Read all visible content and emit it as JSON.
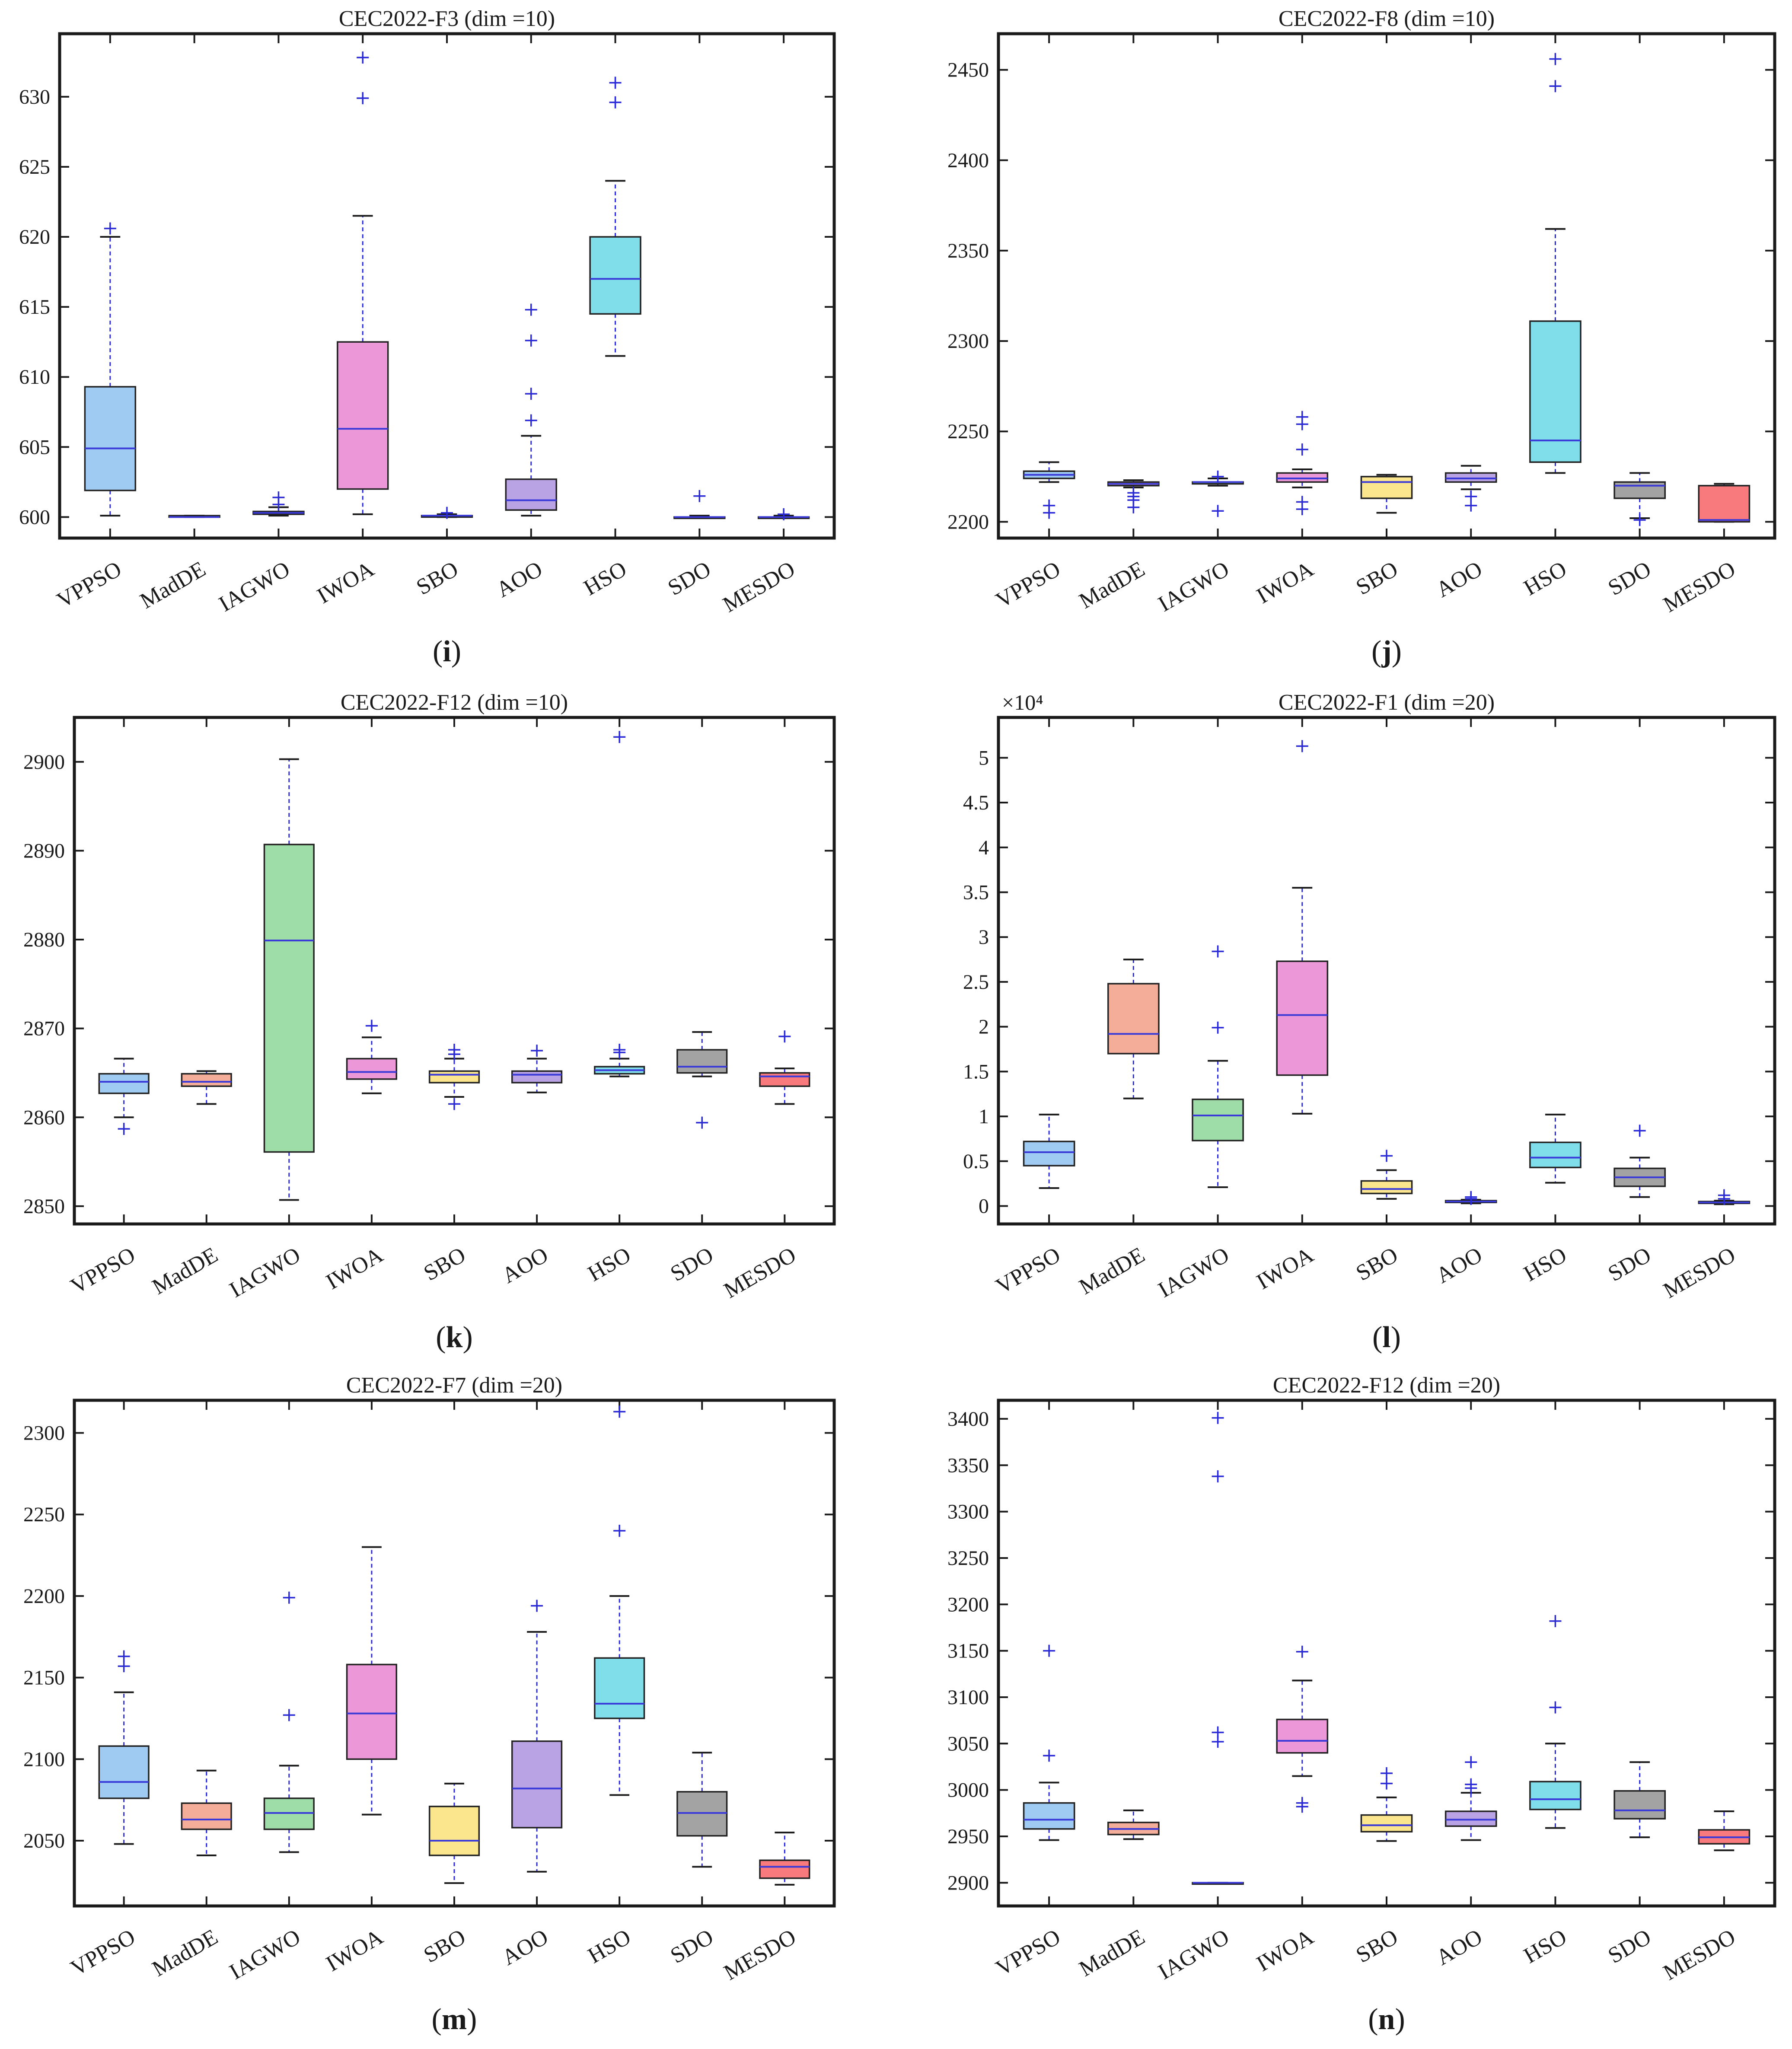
{
  "figure_palette": {
    "VPPSO": "#9fcbf2",
    "MadDE": "#f4ad98",
    "IAGWO": "#9fdda8",
    "IWOA": "#ec98d8",
    "SBO": "#fbe68e",
    "AOO": "#b9a3e4",
    "HSO": "#7fdeea",
    "SDO": "#a3a3a3",
    "MESDO": "#f97a7c",
    "whisker_color": "#2a2ad6",
    "median_color": "#3a3ad8"
  },
  "chart_data": [
    {
      "type": "box",
      "title": "CEC2022-F3 (dim =10)",
      "panel_label": "(i)",
      "label_letter": "i",
      "categories": [
        "VPPSO",
        "MadDE",
        "IAGWO",
        "IWOA",
        "SBO",
        "AOO",
        "HSO",
        "SDO",
        "MESDO"
      ],
      "ylim": [
        598.5,
        634.5
      ],
      "yticks": [
        600,
        605,
        610,
        615,
        620,
        625,
        630
      ],
      "ytick_labels": [
        "600",
        "605",
        "610",
        "615",
        "620",
        "625",
        "630"
      ],
      "boxes": [
        {
          "min": 600.1,
          "q1": 601.9,
          "median": 604.9,
          "q3": 609.3,
          "max": 620.0,
          "outliers": [
            620.6
          ]
        },
        {
          "min": 600.0,
          "q1": 600.0,
          "median": 600.0,
          "q3": 600.1,
          "max": 600.1,
          "outliers": []
        },
        {
          "min": 600.1,
          "q1": 600.2,
          "median": 600.3,
          "q3": 600.4,
          "max": 600.7,
          "outliers": [
            600.9,
            601.4
          ]
        },
        {
          "min": 600.2,
          "q1": 602.0,
          "median": 606.3,
          "q3": 612.5,
          "max": 621.5,
          "outliers": [
            629.9,
            632.8
          ]
        },
        {
          "min": 600.0,
          "q1": 600.0,
          "median": 600.1,
          "q3": 600.1,
          "max": 600.2,
          "outliers": [
            600.3
          ]
        },
        {
          "min": 600.1,
          "q1": 600.5,
          "median": 601.2,
          "q3": 602.7,
          "max": 605.8,
          "outliers": [
            606.9,
            608.8,
            612.6,
            614.8
          ]
        },
        {
          "min": 611.5,
          "q1": 614.5,
          "median": 617.0,
          "q3": 620.0,
          "max": 624.0,
          "outliers": [
            629.6,
            631.0
          ]
        },
        {
          "min": 600.0,
          "q1": 600.0,
          "median": 600.0,
          "q3": 600.0,
          "max": 600.1,
          "outliers": [
            601.5
          ]
        },
        {
          "min": 600.0,
          "q1": 600.0,
          "median": 600.0,
          "q3": 600.0,
          "max": 600.1,
          "outliers": [
            600.2
          ]
        }
      ]
    },
    {
      "type": "box",
      "title": "CEC2022-F8 (dim =10)",
      "panel_label": "(j)",
      "label_letter": "j",
      "categories": [
        "VPPSO",
        "MadDE",
        "IAGWO",
        "IWOA",
        "SBO",
        "AOO",
        "HSO",
        "SDO",
        "MESDO"
      ],
      "ylim": [
        2191,
        2470
      ],
      "yticks": [
        2200,
        2250,
        2300,
        2350,
        2400,
        2450
      ],
      "ytick_labels": [
        "2200",
        "2250",
        "2300",
        "2350",
        "2400",
        "2450"
      ],
      "boxes": [
        {
          "min": 2222,
          "q1": 2224,
          "median": 2226,
          "q3": 2228,
          "max": 2233,
          "outliers": [
            2209,
            2205
          ]
        },
        {
          "min": 2219,
          "q1": 2220,
          "median": 2221,
          "q3": 2222,
          "max": 2223,
          "outliers": [
            2216,
            2214,
            2212,
            2208
          ]
        },
        {
          "min": 2220,
          "q1": 2221,
          "median": 2222,
          "q3": 2222,
          "max": 2224,
          "outliers": [
            2225,
            2206
          ]
        },
        {
          "min": 2219,
          "q1": 2222,
          "median": 2224,
          "q3": 2227,
          "max": 2229,
          "outliers": [
            2240,
            2254,
            2258,
            2211,
            2207
          ]
        },
        {
          "min": 2205,
          "q1": 2213,
          "median": 2222,
          "q3": 2225,
          "max": 2226,
          "outliers": []
        },
        {
          "min": 2218,
          "q1": 2222,
          "median": 2224,
          "q3": 2227,
          "max": 2231,
          "outliers": [
            2214,
            2209
          ]
        },
        {
          "min": 2227,
          "q1": 2233,
          "median": 2245,
          "q3": 2311,
          "max": 2362,
          "outliers": [
            2441,
            2456
          ]
        },
        {
          "min": 2202,
          "q1": 2213,
          "median": 2220,
          "q3": 2222,
          "max": 2227,
          "outliers": [
            2201
          ]
        },
        {
          "min": 2200,
          "q1": 2200,
          "median": 2201,
          "q3": 2220,
          "max": 2221,
          "outliers": []
        }
      ]
    },
    {
      "type": "box",
      "title": "CEC2022-F12 (dim =10)",
      "panel_label": "(k)",
      "label_letter": "k",
      "categories": [
        "VPPSO",
        "MadDE",
        "IAGWO",
        "IWOA",
        "SBO",
        "AOO",
        "HSO",
        "SDO",
        "MESDO"
      ],
      "ylim": [
        2848,
        2905
      ],
      "yticks": [
        2850,
        2860,
        2870,
        2880,
        2890,
        2900
      ],
      "ytick_labels": [
        "2850",
        "2860",
        "2870",
        "2880",
        "2890",
        "2900"
      ],
      "boxes": [
        {
          "min": 2860.0,
          "q1": 2862.7,
          "median": 2864.0,
          "q3": 2864.9,
          "max": 2866.6,
          "outliers": [
            2858.7
          ]
        },
        {
          "min": 2861.5,
          "q1": 2863.5,
          "median": 2864.0,
          "q3": 2864.9,
          "max": 2865.2,
          "outliers": []
        },
        {
          "min": 2850.7,
          "q1": 2856.1,
          "median": 2879.9,
          "q3": 2890.7,
          "max": 2900.3,
          "outliers": []
        },
        {
          "min": 2862.7,
          "q1": 2864.3,
          "median": 2865.1,
          "q3": 2866.6,
          "max": 2869.0,
          "outliers": [
            2870.3
          ]
        },
        {
          "min": 2862.3,
          "q1": 2863.9,
          "median": 2864.8,
          "q3": 2865.2,
          "max": 2866.6,
          "outliers": [
            2867.1,
            2867.6,
            2861.5
          ]
        },
        {
          "min": 2862.8,
          "q1": 2863.9,
          "median": 2864.8,
          "q3": 2865.2,
          "max": 2866.6,
          "outliers": [
            2867.5
          ]
        },
        {
          "min": 2864.6,
          "q1": 2864.9,
          "median": 2865.3,
          "q3": 2865.7,
          "max": 2866.6,
          "outliers": [
            2867.3,
            2867.6,
            2902.8
          ]
        },
        {
          "min": 2864.6,
          "q1": 2865.0,
          "median": 2865.7,
          "q3": 2867.6,
          "max": 2869.6,
          "outliers": [
            2859.4
          ]
        },
        {
          "min": 2861.5,
          "q1": 2863.5,
          "median": 2864.6,
          "q3": 2865.0,
          "max": 2865.5,
          "outliers": [
            2869.1
          ]
        }
      ]
    },
    {
      "type": "box",
      "title": "CEC2022-F1 (dim =20)",
      "panel_label": "(l)",
      "label_letter": "l",
      "exponent_label": "×10⁴",
      "categories": [
        "VPPSO",
        "MadDE",
        "IAGWO",
        "IWOA",
        "SBO",
        "AOO",
        "HSO",
        "SDO",
        "MESDO"
      ],
      "ylim": [
        -0.2,
        5.45
      ],
      "yticks": [
        0,
        0.5,
        1,
        1.5,
        2,
        2.5,
        3,
        3.5,
        4,
        4.5,
        5
      ],
      "ytick_labels": [
        "0",
        "0.5",
        "1",
        "1.5",
        "2",
        "2.5",
        "3",
        "3.5",
        "4",
        "4.5",
        "5"
      ],
      "boxes": [
        {
          "min": 0.2,
          "q1": 0.45,
          "median": 0.6,
          "q3": 0.72,
          "max": 1.02,
          "outliers": []
        },
        {
          "min": 1.2,
          "q1": 1.7,
          "median": 1.92,
          "q3": 2.48,
          "max": 2.75,
          "outliers": []
        },
        {
          "min": 0.21,
          "q1": 0.73,
          "median": 1.01,
          "q3": 1.19,
          "max": 1.62,
          "outliers": [
            1.99,
            2.84
          ]
        },
        {
          "min": 1.03,
          "q1": 1.46,
          "median": 2.13,
          "q3": 2.73,
          "max": 3.55,
          "outliers": [
            5.13
          ]
        },
        {
          "min": 0.08,
          "q1": 0.14,
          "median": 0.19,
          "q3": 0.28,
          "max": 0.4,
          "outliers": [
            0.56
          ]
        },
        {
          "min": 0.03,
          "q1": 0.04,
          "median": 0.05,
          "q3": 0.06,
          "max": 0.07,
          "outliers": [
            0.08,
            0.1
          ]
        },
        {
          "min": 0.26,
          "q1": 0.43,
          "median": 0.54,
          "q3": 0.71,
          "max": 1.02,
          "outliers": []
        },
        {
          "min": 0.1,
          "q1": 0.22,
          "median": 0.32,
          "q3": 0.42,
          "max": 0.54,
          "outliers": [
            0.84
          ]
        },
        {
          "min": 0.02,
          "q1": 0.03,
          "median": 0.04,
          "q3": 0.05,
          "max": 0.06,
          "outliers": [
            0.08,
            0.12
          ]
        }
      ]
    },
    {
      "type": "box",
      "title": "CEC2022-F7 (dim =20)",
      "panel_label": "(m)",
      "label_letter": "m",
      "categories": [
        "VPPSO",
        "MadDE",
        "IAGWO",
        "IWOA",
        "SBO",
        "AOO",
        "HSO",
        "SDO",
        "MESDO"
      ],
      "ylim": [
        2010,
        2320
      ],
      "yticks": [
        2050,
        2100,
        2150,
        2200,
        2250,
        2300
      ],
      "ytick_labels": [
        "2050",
        "2100",
        "2150",
        "2200",
        "2250",
        "2300"
      ],
      "boxes": [
        {
          "min": 2048,
          "q1": 2076,
          "median": 2086,
          "q3": 2108,
          "max": 2141,
          "outliers": [
            2157,
            2163
          ]
        },
        {
          "min": 2041,
          "q1": 2057,
          "median": 2063,
          "q3": 2073,
          "max": 2093,
          "outliers": []
        },
        {
          "min": 2043,
          "q1": 2057,
          "median": 2067,
          "q3": 2076,
          "max": 2096,
          "outliers": [
            2127,
            2199
          ]
        },
        {
          "min": 2066,
          "q1": 2100,
          "median": 2128,
          "q3": 2158,
          "max": 2230,
          "outliers": []
        },
        {
          "min": 2024,
          "q1": 2041,
          "median": 2050,
          "q3": 2071,
          "max": 2085,
          "outliers": []
        },
        {
          "min": 2031,
          "q1": 2058,
          "median": 2082,
          "q3": 2111,
          "max": 2178,
          "outliers": [
            2194
          ]
        },
        {
          "min": 2078,
          "q1": 2125,
          "median": 2134,
          "q3": 2162,
          "max": 2200,
          "outliers": [
            2240,
            2313
          ]
        },
        {
          "min": 2034,
          "q1": 2053,
          "median": 2067,
          "q3": 2080,
          "max": 2104,
          "outliers": []
        },
        {
          "min": 2023,
          "q1": 2027,
          "median": 2034,
          "q3": 2038,
          "max": 2055,
          "outliers": []
        }
      ]
    },
    {
      "type": "box",
      "title": "CEC2022-F12 (dim =20)",
      "panel_label": "(n)",
      "label_letter": "n",
      "categories": [
        "VPPSO",
        "MadDE",
        "IAGWO",
        "IWOA",
        "SBO",
        "AOO",
        "HSO",
        "SDO",
        "MESDO"
      ],
      "ylim": [
        2875,
        3420
      ],
      "yticks": [
        2900,
        2950,
        3000,
        3050,
        3100,
        3150,
        3200,
        3250,
        3300,
        3350,
        3400
      ],
      "ytick_labels": [
        "2900",
        "2950",
        "3000",
        "3050",
        "3100",
        "3150",
        "3200",
        "3250",
        "3300",
        "3350",
        "3400"
      ],
      "boxes": [
        {
          "min": 2946,
          "q1": 2958,
          "median": 2968,
          "q3": 2986,
          "max": 3008,
          "outliers": [
            3037,
            3150
          ]
        },
        {
          "min": 2947,
          "q1": 2952,
          "median": 2958,
          "q3": 2965,
          "max": 2978,
          "outliers": []
        },
        {
          "min": 2900,
          "q1": 2900,
          "median": 2900,
          "q3": 2900,
          "max": 2900,
          "outliers": [
            3052,
            3062,
            3338,
            3401
          ]
        },
        {
          "min": 3015,
          "q1": 3040,
          "median": 3053,
          "q3": 3076,
          "max": 3118,
          "outliers": [
            2982,
            2986,
            3149
          ]
        },
        {
          "min": 2945,
          "q1": 2955,
          "median": 2962,
          "q3": 2973,
          "max": 2992,
          "outliers": [
            3007,
            3018
          ]
        },
        {
          "min": 2946,
          "q1": 2961,
          "median": 2968,
          "q3": 2977,
          "max": 2997,
          "outliers": [
            3002,
            3006,
            3030
          ]
        },
        {
          "min": 2959,
          "q1": 2979,
          "median": 2990,
          "q3": 3009,
          "max": 3050,
          "outliers": [
            3089,
            3182
          ]
        },
        {
          "min": 2949,
          "q1": 2969,
          "median": 2978,
          "q3": 2999,
          "max": 3030,
          "outliers": []
        },
        {
          "min": 2935,
          "q1": 2942,
          "median": 2949,
          "q3": 2957,
          "max": 2977,
          "outliers": []
        }
      ]
    }
  ]
}
